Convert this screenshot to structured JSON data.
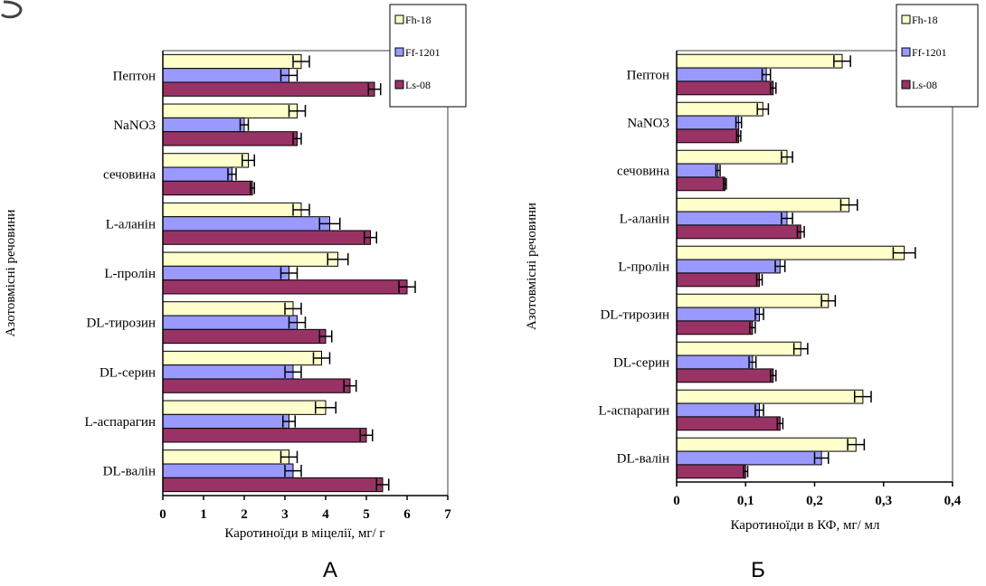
{
  "chart_data": [
    {
      "type": "bar",
      "orientation": "horizontal",
      "panel_label": "А",
      "title": "",
      "xlabel": "Каротиноїди в міцелії, мг/ г",
      "ylabel": "Азотовмісні речовини",
      "xlim": [
        0,
        7
      ],
      "xticks": [
        "0",
        "1",
        "2",
        "3",
        "4",
        "5",
        "6",
        "7"
      ],
      "grid": false,
      "legend_position": "top-right",
      "categories": [
        "Пептон",
        "NaNO3",
        "сечовина",
        "L-аланін",
        "L-пролін",
        "DL-тирозин",
        "DL-серин",
        "L-аспарагин",
        "DL-валін"
      ],
      "series": [
        {
          "name": "Fh-18",
          "color": "#ffffcc",
          "values": [
            3.4,
            3.3,
            2.1,
            3.4,
            4.3,
            3.2,
            3.9,
            4.0,
            3.1
          ],
          "error": [
            0.2,
            0.2,
            0.15,
            0.2,
            0.25,
            0.2,
            0.2,
            0.25,
            0.2
          ]
        },
        {
          "name": "Ff-1201",
          "color": "#9999ff",
          "values": [
            3.1,
            2.0,
            1.7,
            4.1,
            3.1,
            3.3,
            3.2,
            3.1,
            3.2
          ],
          "error": [
            0.2,
            0.1,
            0.1,
            0.25,
            0.2,
            0.2,
            0.2,
            0.15,
            0.2
          ]
        },
        {
          "name": "Ls-08",
          "color": "#993366",
          "values": [
            5.2,
            3.3,
            2.2,
            5.1,
            6.0,
            4.0,
            4.6,
            5.0,
            5.4
          ],
          "error": [
            0.15,
            0.1,
            0.05,
            0.15,
            0.2,
            0.15,
            0.15,
            0.15,
            0.15
          ]
        }
      ]
    },
    {
      "type": "bar",
      "orientation": "horizontal",
      "panel_label": "Б",
      "title": "",
      "xlabel": "Каротиноїди в КФ, мг/ мл",
      "ylabel": "Азотовмісні речовини",
      "xlim": [
        0,
        0.4
      ],
      "xticks": [
        "0",
        "0,1",
        "0,2",
        "0,3",
        "0,4"
      ],
      "grid": false,
      "legend_position": "top-right",
      "categories": [
        "Пептон",
        "NaNO3",
        "сечовина",
        "L-аланін",
        "L-пролін",
        "DL-тирозин",
        "DL-серин",
        "L-аспарагин",
        "DL-валін"
      ],
      "series": [
        {
          "name": "Fh-18",
          "color": "#ffffcc",
          "values": [
            0.24,
            0.125,
            0.16,
            0.25,
            0.33,
            0.22,
            0.18,
            0.27,
            0.26
          ],
          "error": [
            0.012,
            0.008,
            0.008,
            0.012,
            0.016,
            0.01,
            0.01,
            0.012,
            0.012
          ]
        },
        {
          "name": "Ff-1201",
          "color": "#9999ff",
          "values": [
            0.13,
            0.09,
            0.06,
            0.16,
            0.15,
            0.12,
            0.11,
            0.12,
            0.21
          ],
          "error": [
            0.006,
            0.004,
            0.003,
            0.008,
            0.007,
            0.006,
            0.005,
            0.006,
            0.01
          ]
        },
        {
          "name": "Ls-08",
          "color": "#993366",
          "values": [
            0.14,
            0.09,
            0.07,
            0.18,
            0.12,
            0.11,
            0.14,
            0.15,
            0.1
          ],
          "error": [
            0.004,
            0.003,
            0.002,
            0.005,
            0.004,
            0.004,
            0.004,
            0.004,
            0.003
          ]
        }
      ]
    }
  ]
}
